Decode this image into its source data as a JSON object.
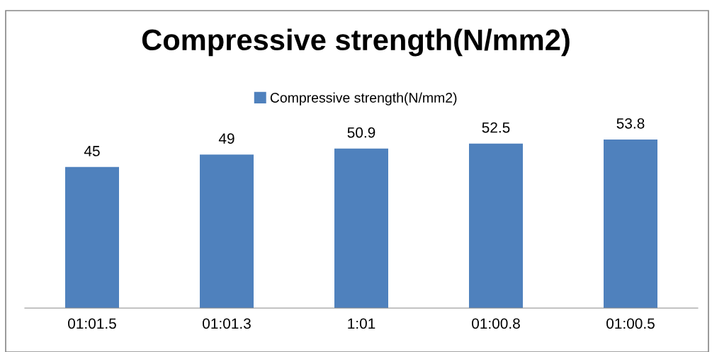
{
  "chart_data": {
    "type": "bar",
    "title": "Compressive strength(N/mm2)",
    "categories": [
      "01:01.5",
      "01:01.3",
      "1:01",
      "01:00.8",
      "01:00.5"
    ],
    "series": [
      {
        "name": "Compressive strength(N/mm2)",
        "color": "#4f81bd",
        "values": [
          45,
          49,
          50.9,
          52.5,
          53.8
        ]
      }
    ],
    "tick_labels": "x",
    "data_labels": true,
    "legend": "top",
    "grid": false
  }
}
